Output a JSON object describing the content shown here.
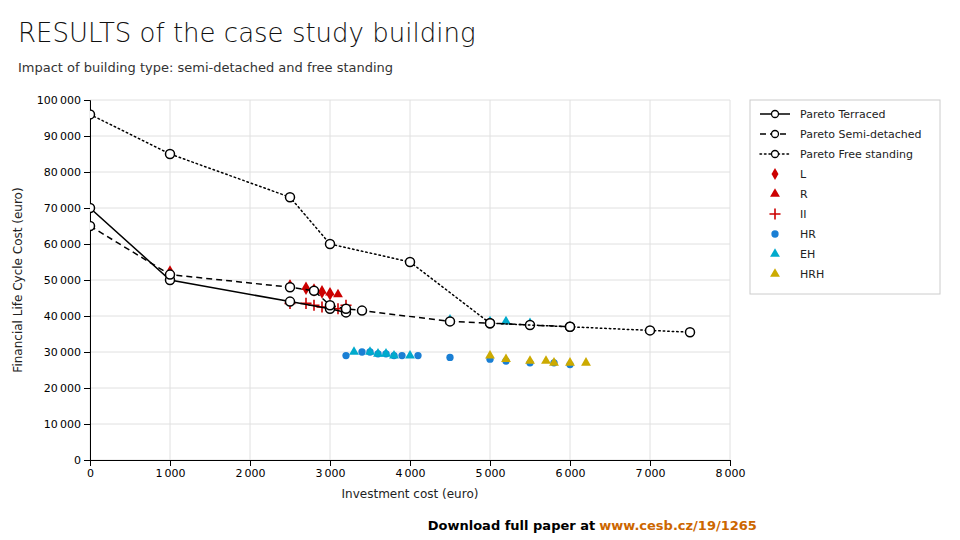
{
  "chart_data": {
    "type": "scatter",
    "title": "RESULTS of the case study building",
    "subtitle": "Impact of building type: semi-detached and free standing",
    "xlabel": "Investment cost (euro)",
    "ylabel": "Financial Life Cycle Cost (euro)",
    "xlim": [
      0,
      8000
    ],
    "ylim": [
      0,
      100000
    ],
    "xticks": [
      0,
      {
        "value": 1000,
        "label": "1 000"
      },
      {
        "value": 2000,
        "label": "2 000"
      },
      {
        "value": 3000,
        "label": "3 000"
      },
      {
        "value": 4000,
        "label": "4 000"
      },
      {
        "value": 5000,
        "label": "5 000"
      },
      {
        "value": 6000,
        "label": "6 000"
      },
      {
        "value": 7000,
        "label": "7 000"
      },
      {
        "value": 8000,
        "label": "8 000"
      }
    ],
    "yticks": [
      0,
      {
        "value": 10000,
        "label": "10 000"
      },
      {
        "value": 20000,
        "label": "20 000"
      },
      {
        "value": 30000,
        "label": "30 000"
      },
      {
        "value": 40000,
        "label": "40 000"
      },
      {
        "value": 50000,
        "label": "50 000"
      },
      {
        "value": 60000,
        "label": "60 000"
      },
      {
        "value": 70000,
        "label": "70 000"
      },
      {
        "value": 80000,
        "label": "80 000"
      },
      {
        "value": 90000,
        "label": "90 000"
      },
      {
        "value": 100000,
        "label": "100 000"
      }
    ],
    "grid": true,
    "legend": "top-right",
    "series": [
      {
        "name": "Pareto Terraced",
        "type": "line",
        "color": "#000000",
        "line_style": "solid",
        "marker": "circle",
        "x": [
          0,
          1000,
          2500,
          3000,
          3200
        ],
        "values": [
          70000,
          50000,
          44000,
          42000,
          41000
        ]
      },
      {
        "name": "Pareto Semi-detached",
        "type": "line",
        "color": "#000000",
        "line_style": "dashed",
        "marker": "circle",
        "x": [
          0,
          1000,
          2500,
          2800,
          3000,
          3200,
          3400,
          4500,
          5000,
          5500,
          6000
        ],
        "values": [
          65000,
          51500,
          48000,
          47000,
          43000,
          42000,
          41500,
          38500,
          38000,
          37500,
          37000
        ]
      },
      {
        "name": "Pareto Free standing",
        "type": "line",
        "color": "#000000",
        "line_style": "dotted",
        "marker": "circle",
        "x": [
          0,
          1000,
          2500,
          3000,
          4000,
          5000,
          6000,
          7000,
          7500
        ],
        "values": [
          96000,
          85000,
          73000,
          60000,
          55000,
          38000,
          37000,
          36000,
          35500
        ]
      },
      {
        "name": "L",
        "type": "scatter",
        "color": "#cc0000",
        "marker": "diamond",
        "x": [
          1000,
          2500,
          2700,
          2800,
          2900,
          3000
        ],
        "values": [
          51500,
          48500,
          47500,
          47000,
          46500,
          46000
        ]
      },
      {
        "name": "R",
        "type": "scatter",
        "color": "#cc0000",
        "marker": "triangle",
        "x": [
          1000,
          2500,
          2700,
          2800,
          2900,
          3000,
          3100
        ],
        "values": [
          52500,
          48500,
          48000,
          47500,
          47000,
          46500,
          46000
        ]
      },
      {
        "name": "II",
        "type": "scatter",
        "color": "#cc0000",
        "marker": "plus",
        "x": [
          2500,
          2700,
          2800,
          2900,
          3000,
          3100,
          3200
        ],
        "values": [
          43500,
          43500,
          43000,
          42500,
          42500,
          42000,
          43000
        ]
      },
      {
        "name": "HR",
        "type": "scatter",
        "color": "#1a7fd4",
        "marker": "circle",
        "x": [
          3200,
          3400,
          3500,
          3600,
          3700,
          3800,
          3900,
          4100,
          4500,
          5000,
          5200,
          5500,
          5800,
          6000
        ],
        "values": [
          29000,
          30000,
          30000,
          29500,
          29500,
          29000,
          29000,
          29000,
          28500,
          28000,
          27500,
          27000,
          27000,
          26500
        ]
      },
      {
        "name": "EH",
        "type": "scatter",
        "color": "#00aacc",
        "marker": "triangle",
        "x": [
          3300,
          3500,
          3600,
          3700,
          3800,
          4000,
          4500,
          5000,
          5200,
          5500
        ],
        "values": [
          30000,
          30000,
          29500,
          29500,
          29000,
          29000,
          39000,
          38500,
          38500,
          38000
        ]
      },
      {
        "name": "HRH",
        "type": "scatter",
        "color": "#ccaa00",
        "marker": "triangle",
        "x": [
          5000,
          5200,
          5500,
          5700,
          5800,
          6000,
          6200
        ],
        "values": [
          29000,
          28000,
          27500,
          27500,
          27000,
          27000,
          27000
        ]
      }
    ],
    "annotations": [
      {
        "text": "Download full paper at "
      },
      {
        "text": "www.cesb.cz/19/1265",
        "color": "#cc6600"
      }
    ]
  }
}
